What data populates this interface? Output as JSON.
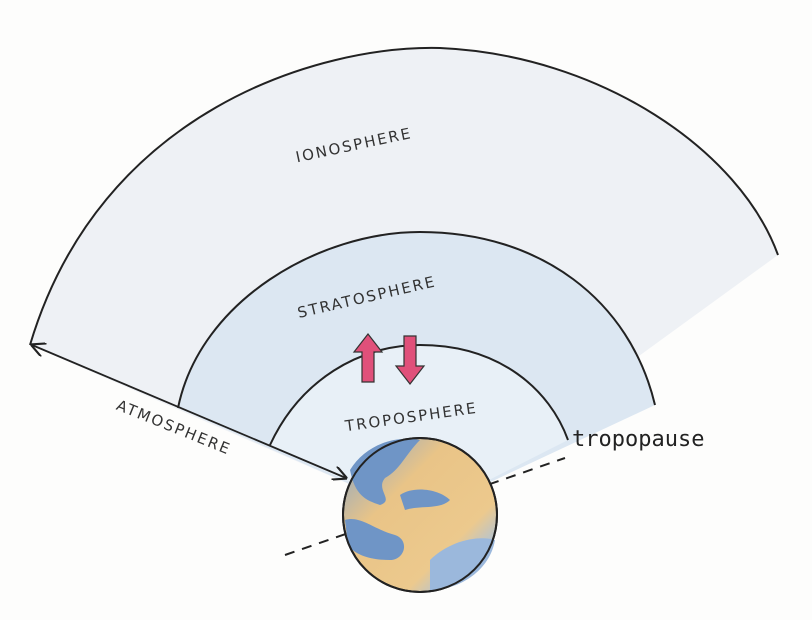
{
  "labels": {
    "ionosphere": "IONOSPHERE",
    "stratosphere": "STRATOSPHERE",
    "troposphere": "TROPOSPHERE",
    "atmosphere": "ATMOSPHERE",
    "tropopause": "tropopause"
  }
}
